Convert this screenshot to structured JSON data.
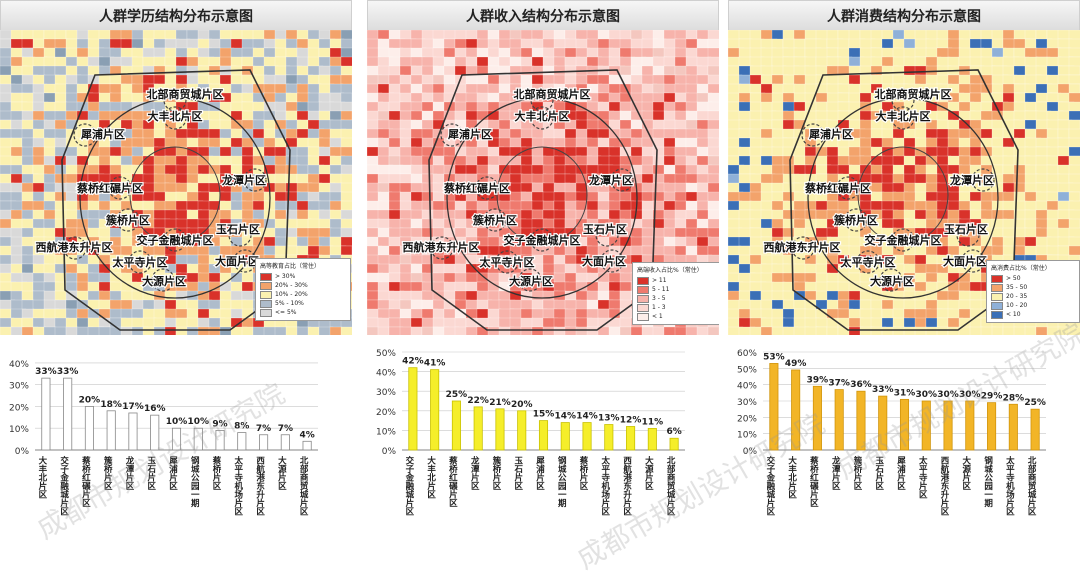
{
  "districts": [
    {
      "id": "beibu",
      "label": "北部商贸城片区",
      "mx": 175,
      "my": 70,
      "lx": 185,
      "ly": 64
    },
    {
      "id": "dafeng",
      "label": "大丰北片区",
      "mx": 175,
      "my": 88,
      "lx": 175,
      "ly": 86
    },
    {
      "id": "pipu",
      "label": "犀浦片区",
      "mx": 85,
      "my": 105,
      "lx": 103,
      "ly": 104
    },
    {
      "id": "caiqiao",
      "label": "蔡桥红碾片区",
      "mx": 120,
      "my": 158,
      "lx": 110,
      "ly": 158
    },
    {
      "id": "longtan",
      "label": "龙潭片区",
      "mx": 255,
      "my": 150,
      "lx": 244,
      "ly": 150
    },
    {
      "id": "jiqiao",
      "label": "簇桥片区",
      "mx": 128,
      "my": 190,
      "lx": 128,
      "ly": 190
    },
    {
      "id": "yushi",
      "label": "玉石片区",
      "mx": 240,
      "my": 205,
      "lx": 238,
      "ly": 199
    },
    {
      "id": "jiaozi",
      "label": "交子金融城片区",
      "mx": 175,
      "my": 210,
      "lx": 175,
      "ly": 210
    },
    {
      "id": "xihang",
      "label": "西航港东升片区",
      "mx": 75,
      "my": 218,
      "lx": 74,
      "ly": 217
    },
    {
      "id": "taiping",
      "label": "太平寺片区",
      "mx": 140,
      "my": 232,
      "lx": 140,
      "ly": 232
    },
    {
      "id": "damian",
      "label": "大面片区",
      "mx": 245,
      "my": 231,
      "lx": 237,
      "ly": 231
    },
    {
      "id": "dayuan",
      "label": "大源片区",
      "mx": 163,
      "my": 250,
      "lx": 164,
      "ly": 251
    }
  ],
  "panels": [
    {
      "title": "人群学历结构分布示意图",
      "legend": {
        "title": "高等教育占比（常住）",
        "items": [
          {
            "label": "> 30%",
            "color": "#d9322a"
          },
          {
            "label": "20% - 30%",
            "color": "#f3a36b"
          },
          {
            "label": "10% - 20%",
            "color": "#fbf1b0"
          },
          {
            "label": "5% - 10%",
            "color": "#aebccb"
          },
          {
            "label": "<= 5%",
            "color": "#d9d9d9"
          }
        ]
      },
      "palette": [
        "#d9322a",
        "#f3a36b",
        "#fbf1b0",
        "#aebccb",
        "#d9d9d9",
        "#8a9fb3",
        "#fff6cc"
      ],
      "chart_data": {
        "type": "bar",
        "categories": [
          "大丰北片区",
          "交子金融城片区",
          "蔡桥红碾片区",
          "簇桥片区",
          "龙潭片区",
          "玉石片区",
          "犀浦片区",
          "北部商贸城片区",
          "西航港东升片区",
          "太平寺片区",
          "西航港东升片区",
          "大源片区",
          "北部商贸城片区"
        ],
        "category_labels": [
          "大丰北片区",
          "交子金融城片区",
          "蔡桥红碾片区",
          "簇桥片区",
          "龙潭片区",
          "玉石片区",
          "犀浦片区",
          "钢城公园一期",
          "蔡桥片区",
          "太平寺机场片区",
          "西航港东升片区",
          "大源片区",
          "北部商贸城片区"
        ],
        "values": [
          33,
          33,
          20,
          18,
          17,
          16,
          10,
          10,
          9,
          8,
          7,
          7,
          4
        ],
        "value_labels": [
          "33%",
          "33%",
          "20%",
          "18%",
          "17%",
          "16%",
          "10%",
          "10%",
          "9%",
          "8%",
          "7%",
          "7%",
          "4%"
        ],
        "yticks": [
          "0%",
          "10%",
          "20%",
          "30%",
          "40%"
        ],
        "ylim": [
          0,
          45
        ],
        "bar_color": "#ffffff",
        "bar_stroke": "#888888"
      }
    },
    {
      "title": "人群收入结构分布示意图",
      "legend": {
        "title": "高端收入占比%（常住）",
        "items": [
          {
            "label": "> 11",
            "color": "#d9322a"
          },
          {
            "label": "5 - 11",
            "color": "#ef7a6e"
          },
          {
            "label": "3 - 5",
            "color": "#f7b3ab"
          },
          {
            "label": "1 - 3",
            "color": "#fbd8d2"
          },
          {
            "label": "< 1",
            "color": "#fdeeea"
          }
        ]
      },
      "palette": [
        "#d9322a",
        "#ef7a6e",
        "#f7b3ab",
        "#fbd8d2",
        "#fdeeea",
        "#f4c7bf",
        "#e85d52"
      ],
      "chart_data": {
        "type": "bar",
        "category_labels": [
          "交子金融城片区",
          "大丰北片区",
          "蔡桥红碾片区",
          "龙潭片区",
          "簇桥片区",
          "玉石片区",
          "犀浦片区",
          "钢城公园一期",
          "蔡桥片区",
          "太平寺机场片区",
          "西航港东升片区",
          "大源片区",
          "北部商贸城片区"
        ],
        "values": [
          42,
          41,
          25,
          22,
          21,
          20,
          15,
          14,
          14,
          13,
          12,
          11,
          6
        ],
        "value_labels": [
          "42%",
          "41%",
          "25%",
          "22%",
          "21%",
          "20%",
          "15%",
          "14%",
          "14%",
          "13%",
          "12%",
          "11%",
          "6%"
        ],
        "yticks": [
          "0%",
          "10%",
          "20%",
          "30%",
          "40%",
          "50%"
        ],
        "ylim": [
          0,
          50
        ],
        "bar_color": "#f5ee2a",
        "bar_stroke": "#c9c200"
      }
    },
    {
      "title": "人群消费结构分布示意图",
      "legend": {
        "title": "高消费占比%（常住）",
        "items": [
          {
            "label": "> 50",
            "color": "#d9322a"
          },
          {
            "label": "35 - 50",
            "color": "#f3a36b"
          },
          {
            "label": "20 - 35",
            "color": "#fbf1b0"
          },
          {
            "label": "10 - 20",
            "color": "#8fb0d8"
          },
          {
            "label": "< 10",
            "color": "#3b6fb6"
          }
        ]
      },
      "palette": [
        "#d9322a",
        "#f3a36b",
        "#fbf1b0",
        "#fbf1b0",
        "#fbf1b0",
        "#8fb0d8",
        "#3b6fb6"
      ],
      "chart_data": {
        "type": "bar",
        "category_labels": [
          "交子金融城片区",
          "大丰北片区",
          "蔡桥红碾片区",
          "龙潭片区",
          "簇桥片区",
          "玉石片区",
          "犀浦片区",
          "太平寺片区",
          "西航港东升片区",
          "大源片区",
          "钢城公园一期",
          "太平寺机场片区",
          "北部商贸城片区"
        ],
        "values": [
          53,
          49,
          39,
          37,
          36,
          33,
          31,
          30,
          30,
          30,
          29,
          28,
          25
        ],
        "value_labels": [
          "53%",
          "49%",
          "39%",
          "37%",
          "36%",
          "33%",
          "31%",
          "30%",
          "30%",
          "30%",
          "29%",
          "28%",
          "25%"
        ],
        "yticks": [
          "0%",
          "10%",
          "20%",
          "30%",
          "40%",
          "50%",
          "60%"
        ],
        "ylim": [
          0,
          60
        ],
        "bar_color": "#f2b527",
        "bar_stroke": "#d1950c"
      }
    }
  ],
  "watermark": "成都市规划设计研究院"
}
